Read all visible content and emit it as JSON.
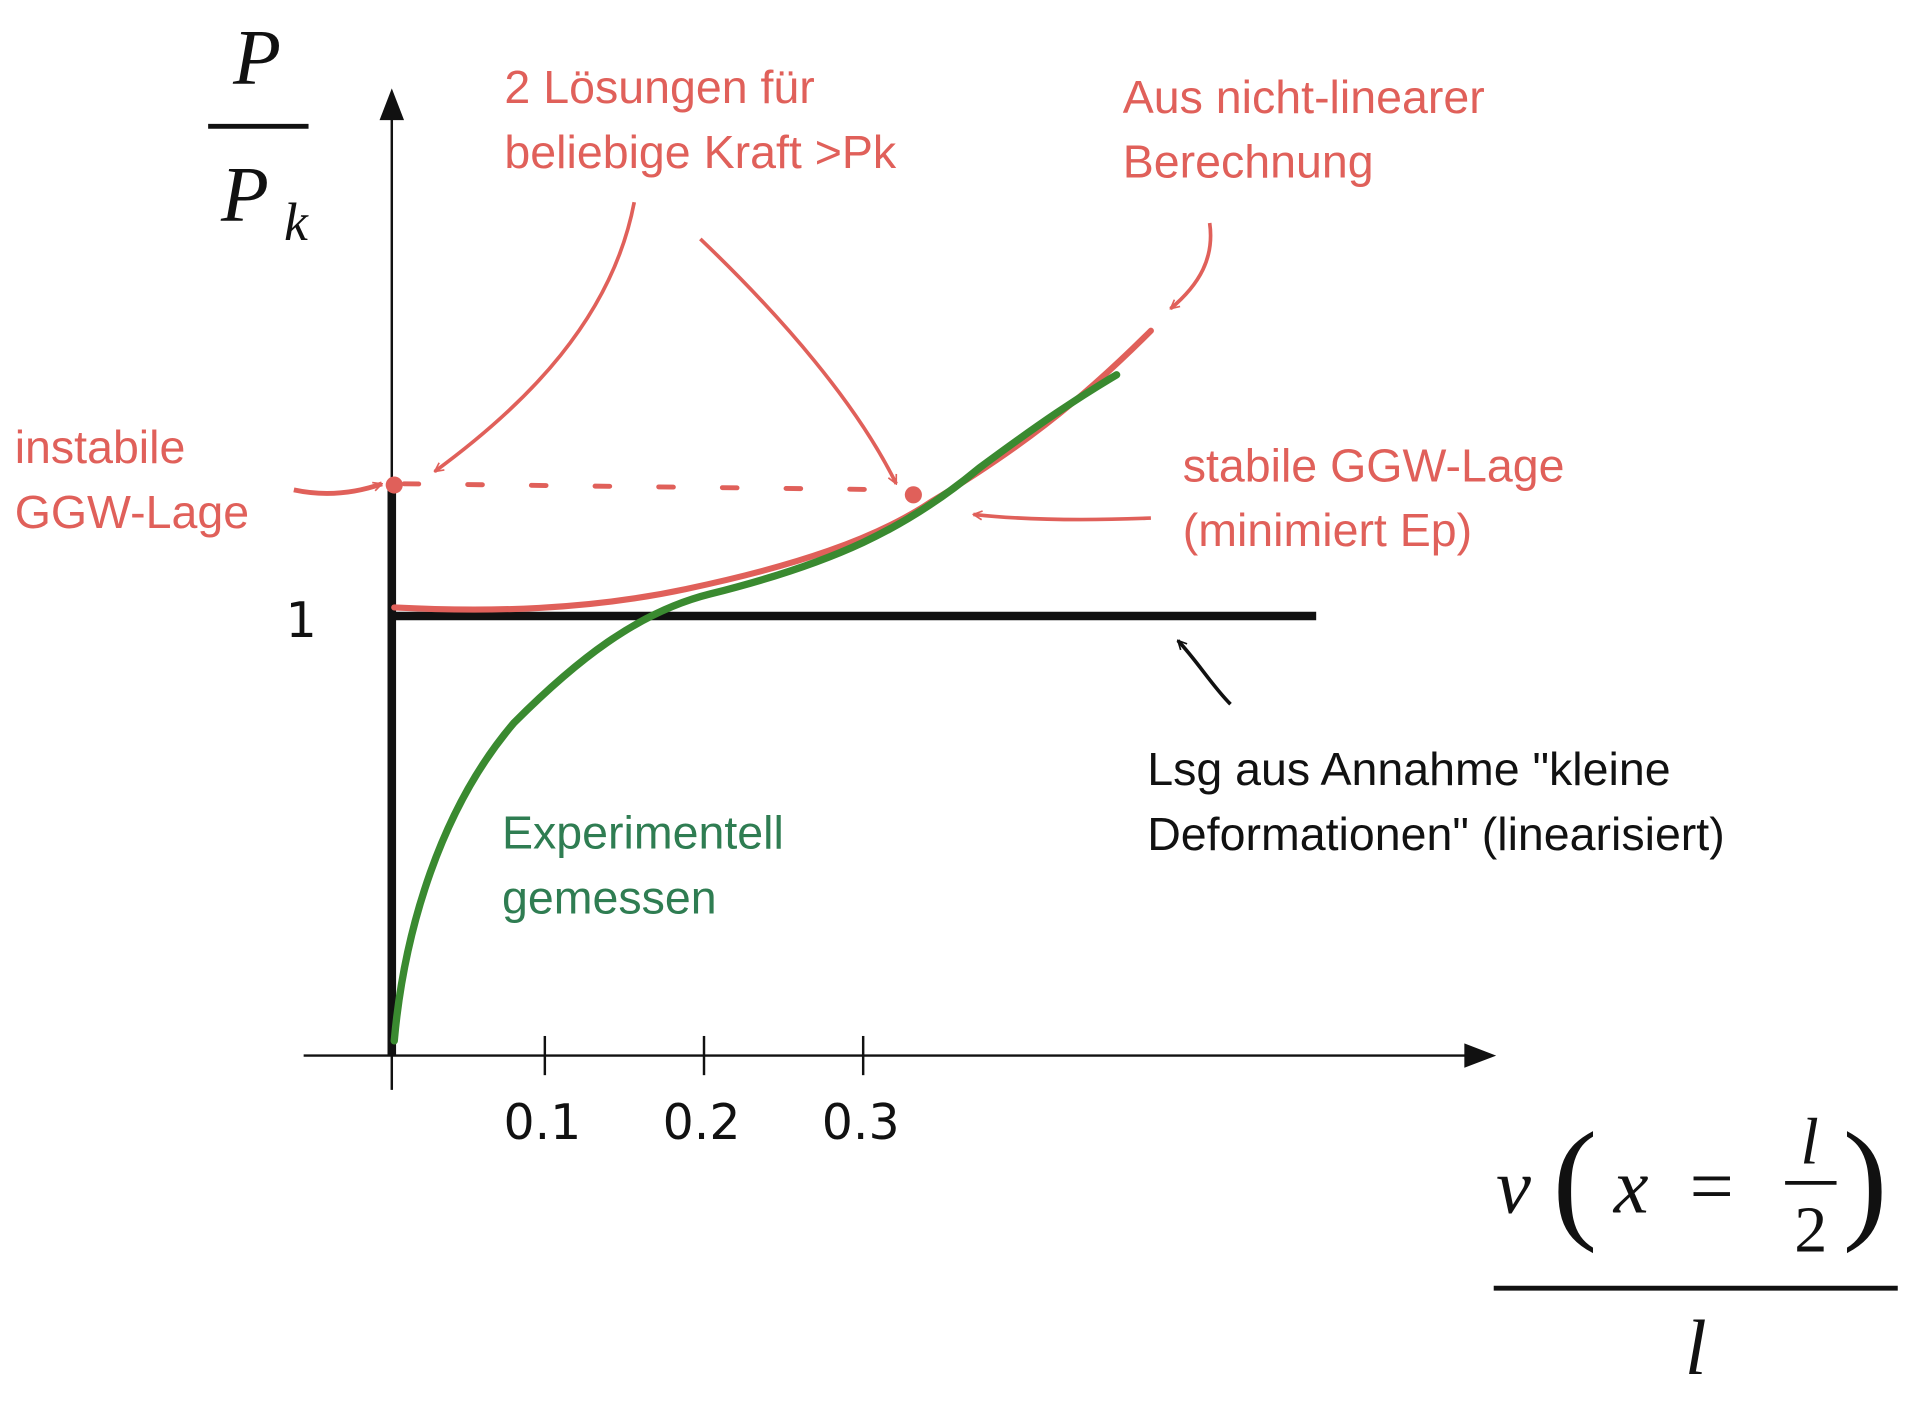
{
  "y_axis_label": {
    "numerator": "P",
    "denominator": "P",
    "subscript": "k"
  },
  "x_axis_label": {
    "numerator": {
      "v": "v",
      "open": "(",
      "x": "x",
      "eq": "=",
      "l": "l",
      "two": "2",
      "close": ")"
    },
    "denominator": "l"
  },
  "y_ticks": [
    "1"
  ],
  "x_ticks": [
    "0.1",
    "0.2",
    "0.3"
  ],
  "annotations": {
    "two_solutions": [
      "2 Lösungen für",
      "beliebige Kraft >Pk"
    ],
    "nonlinear": [
      "Aus nicht-linearer",
      "Berechnung"
    ],
    "unstable": [
      "instabile",
      "GGW-Lage"
    ],
    "stable": [
      "stabile GGW-Lage",
      "(minimiert Ep)"
    ],
    "linearized": [
      "Lsg aus Annahme \"kleine",
      "Deformationen\" (linearisiert)"
    ],
    "experimental": [
      "Experimentell",
      "gemessen"
    ]
  }
}
